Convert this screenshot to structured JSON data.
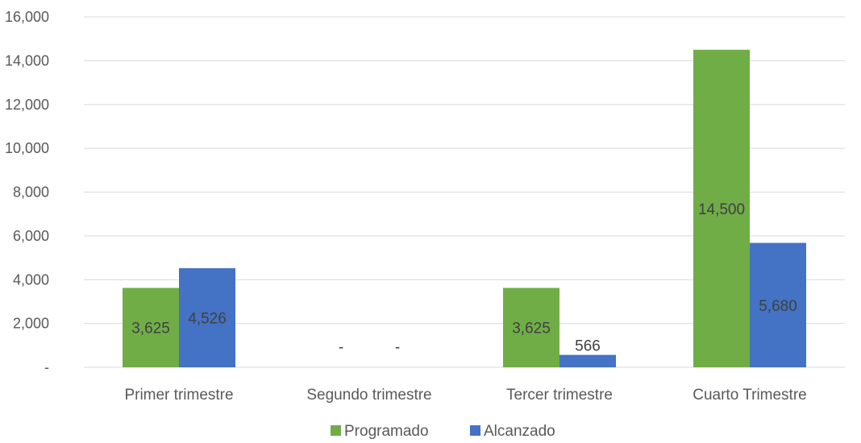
{
  "chart_data": {
    "type": "bar",
    "categories": [
      "Primer trimestre",
      "Segundo trimestre",
      "Tercer trimestre",
      "Cuarto Trimestre"
    ],
    "series": [
      {
        "name": "Programado",
        "color": "#70AD47",
        "values": [
          3625,
          0,
          3625,
          14500
        ],
        "labels": [
          "3,625",
          "-",
          "3,625",
          "14,500"
        ]
      },
      {
        "name": "Alcanzado",
        "color": "#4472C4",
        "values": [
          4526,
          0,
          566,
          5680
        ],
        "labels": [
          "4,526",
          "-",
          "566",
          "5,680"
        ]
      }
    ],
    "ylim": [
      0,
      16000
    ],
    "yticks": [
      {
        "value": 0,
        "label": "-"
      },
      {
        "value": 2000,
        "label": "2,000"
      },
      {
        "value": 4000,
        "label": "4,000"
      },
      {
        "value": 6000,
        "label": "6,000"
      },
      {
        "value": 8000,
        "label": "8,000"
      },
      {
        "value": 10000,
        "label": "10,000"
      },
      {
        "value": 12000,
        "label": "12,000"
      },
      {
        "value": 14000,
        "label": "14,000"
      },
      {
        "value": 16000,
        "label": "16,000"
      }
    ],
    "grid": true,
    "legend_position": "bottom",
    "gridline_color": "#D9D9D9"
  }
}
